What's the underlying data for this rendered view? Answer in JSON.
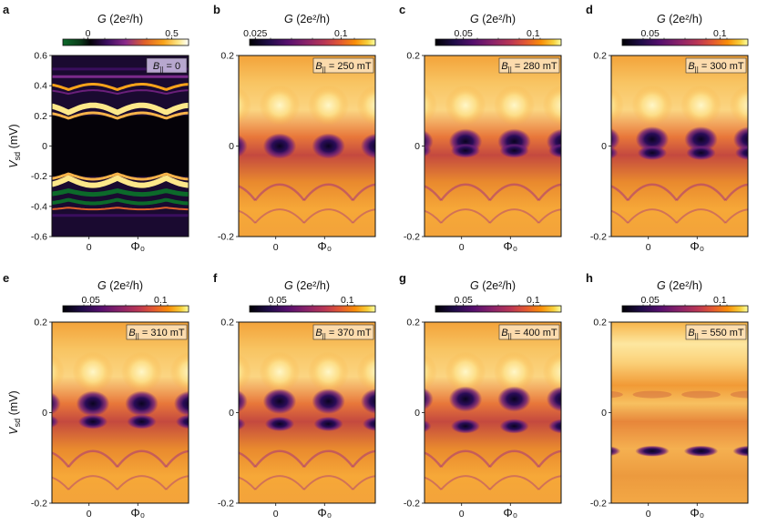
{
  "figure": {
    "colorbar_title": "G (2e²/h)",
    "xlabel": "Φ",
    "xlabel_sub": "0",
    "ylabel": "V",
    "ylabel_sub": "sd",
    "ylabel_unit": " (mV)",
    "field_prefix": "B",
    "field_sub": "||"
  },
  "chart_data": [
    {
      "type": "heatmap",
      "panel": "a",
      "field_label": " = 0",
      "yticks": [
        "0.6",
        "0.4",
        "0.2",
        "0",
        "-0.2",
        "-0.4",
        "-0.6"
      ],
      "ylim": [
        -0.6,
        0.6
      ],
      "xticks": [
        "0",
        "Φ₀"
      ],
      "cbar_ticks": [
        "0",
        "0.5"
      ],
      "cbar_range": [
        -0.15,
        0.6
      ],
      "colormap": "green-black-purple-orange-yellow-white"
    },
    {
      "type": "heatmap",
      "panel": "b",
      "field_label": " = 250 mT",
      "yticks": [
        "0.2",
        "0",
        "-0.2"
      ],
      "ylim": [
        -0.2,
        0.2
      ],
      "xticks": [
        "0",
        "Φ₀"
      ],
      "cbar_ticks": [
        "0.025",
        "0.1"
      ],
      "cbar_range": [
        0.02,
        0.13
      ],
      "colormap": "inferno"
    },
    {
      "type": "heatmap",
      "panel": "c",
      "field_label": " = 280 mT",
      "yticks": [
        "0.2",
        "0",
        "-0.2"
      ],
      "ylim": [
        -0.2,
        0.2
      ],
      "xticks": [
        "0",
        "Φ₀"
      ],
      "cbar_ticks": [
        "0.05",
        "0.1"
      ],
      "cbar_range": [
        0.03,
        0.12
      ],
      "colormap": "inferno"
    },
    {
      "type": "heatmap",
      "panel": "d",
      "field_label": " = 300 mT",
      "yticks": [
        "0.2",
        "0",
        "-0.2"
      ],
      "ylim": [
        -0.2,
        0.2
      ],
      "xticks": [
        "0",
        "Φ₀"
      ],
      "cbar_ticks": [
        "0.05",
        "0.1"
      ],
      "cbar_range": [
        0.03,
        0.12
      ],
      "colormap": "inferno"
    },
    {
      "type": "heatmap",
      "panel": "e",
      "field_label": " = 310 mT",
      "yticks": [
        "0.2",
        "0",
        "-0.2"
      ],
      "ylim": [
        -0.2,
        0.2
      ],
      "xticks": [
        "0",
        "Φ₀"
      ],
      "cbar_ticks": [
        "0.05",
        "0.1"
      ],
      "cbar_range": [
        0.03,
        0.12
      ],
      "colormap": "inferno"
    },
    {
      "type": "heatmap",
      "panel": "f",
      "field_label": " = 370 mT",
      "yticks": [
        "0.2",
        "0",
        "-0.2"
      ],
      "ylim": [
        -0.2,
        0.2
      ],
      "xticks": [
        "0",
        "Φ₀"
      ],
      "cbar_ticks": [
        "0.05",
        "0.1"
      ],
      "cbar_range": [
        0.03,
        0.12
      ],
      "colormap": "inferno"
    },
    {
      "type": "heatmap",
      "panel": "g",
      "field_label": " = 400 mT",
      "yticks": [
        "0.2",
        "0",
        "-0.2"
      ],
      "ylim": [
        -0.2,
        0.2
      ],
      "xticks": [
        "0",
        "Φ₀"
      ],
      "cbar_ticks": [
        "0.05",
        "0.1"
      ],
      "cbar_range": [
        0.03,
        0.12
      ],
      "colormap": "inferno"
    },
    {
      "type": "heatmap",
      "panel": "h",
      "field_label": " = 550 mT",
      "yticks": [
        "0.2",
        "0",
        "-0.2"
      ],
      "ylim": [
        -0.2,
        0.2
      ],
      "xticks": [
        "0",
        "Φ₀"
      ],
      "cbar_ticks": [
        "0.05",
        "0.1"
      ],
      "cbar_range": [
        0.03,
        0.12
      ],
      "colormap": "inferno"
    }
  ]
}
